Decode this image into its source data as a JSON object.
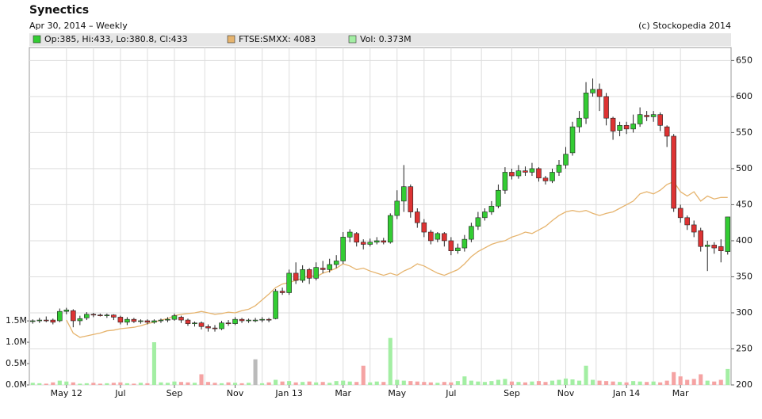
{
  "chart_data": {
    "type": "candlestick",
    "title": "Synectics",
    "subtitle": "Apr 30, 2014 – Weekly",
    "source": "(c) Stockopedia 2014",
    "categories": [
      null,
      null,
      null,
      null,
      null,
      "May 12",
      null,
      null,
      null,
      null,
      null,
      null,
      null,
      "Jul",
      null,
      null,
      null,
      null,
      null,
      null,
      null,
      "Sep",
      null,
      null,
      null,
      null,
      null,
      null,
      null,
      null,
      "Nov",
      null,
      null,
      null,
      null,
      null,
      null,
      null,
      "Jan 13",
      null,
      null,
      null,
      null,
      null,
      null,
      null,
      "Mar",
      null,
      null,
      null,
      null,
      null,
      null,
      null,
      "May",
      null,
      null,
      null,
      null,
      null,
      null,
      null,
      "Jul",
      null,
      null,
      null,
      null,
      null,
      null,
      null,
      null,
      "Sep",
      null,
      null,
      null,
      null,
      null,
      null,
      null,
      "Nov",
      null,
      null,
      null,
      null,
      null,
      null,
      null,
      null,
      "Jan 14",
      null,
      null,
      null,
      null,
      null,
      null,
      null,
      "Mar",
      null,
      null,
      null,
      null,
      null,
      null,
      null
    ],
    "series": [
      {
        "name": "Op:385, Hi:433, Lo:380.8, Cl:433",
        "type": "candlestick",
        "color": "#33cc33",
        "down_color": "#dd3333",
        "open": [
          288,
          289,
          290,
          290,
          289,
          302,
          303,
          289,
          293,
          298,
          297,
          296,
          297,
          294,
          287,
          291,
          288,
          289,
          287,
          289,
          290,
          291,
          294,
          290,
          285,
          286,
          281,
          279,
          278,
          286,
          285,
          291,
          289,
          290,
          290,
          291,
          292,
          330,
          328,
          355,
          345,
          360,
          348,
          362,
          360,
          367,
          372,
          405,
          410,
          398,
          395,
          398,
          400,
          398,
          435,
          455,
          475,
          440,
          425,
          412,
          402,
          410,
          400,
          386,
          390,
          402,
          420,
          432,
          440,
          448,
          470,
          495,
          490,
          497,
          495,
          500,
          487,
          483,
          495,
          505,
          522,
          558,
          570,
          605,
          610,
          600,
          570,
          553,
          560,
          555,
          562,
          574,
          572,
          575,
          558,
          545,
          445,
          432,
          422,
          414,
          392,
          394,
          392,
          385
        ],
        "high": [
          291,
          293,
          295,
          292,
          306,
          307,
          305,
          296,
          301,
          300,
          299,
          299,
          298,
          296,
          294,
          293,
          291,
          291,
          291,
          292,
          294,
          299,
          296,
          292,
          288,
          288,
          284,
          283,
          289,
          290,
          294,
          293,
          292,
          293,
          294,
          293,
          333,
          335,
          360,
          370,
          366,
          362,
          370,
          372,
          375,
          380,
          412,
          416,
          412,
          402,
          403,
          405,
          404,
          438,
          470,
          505,
          478,
          445,
          430,
          415,
          412,
          412,
          405,
          396,
          408,
          425,
          440,
          445,
          455,
          478,
          502,
          500,
          505,
          503,
          508,
          502,
          490,
          500,
          512,
          530,
          565,
          580,
          620,
          625,
          618,
          605,
          572,
          565,
          565,
          575,
          585,
          580,
          580,
          578,
          560,
          548,
          450,
          435,
          428,
          418,
          400,
          398,
          402,
          433
        ],
        "low": [
          285,
          286,
          287,
          284,
          287,
          298,
          280,
          283,
          290,
          294,
          295,
          293,
          290,
          284,
          283,
          286,
          285,
          284,
          285,
          286,
          287,
          289,
          286,
          282,
          281,
          277,
          274,
          274,
          276,
          282,
          283,
          286,
          286,
          287,
          287,
          287,
          291,
          325,
          325,
          340,
          342,
          340,
          345,
          355,
          356,
          362,
          368,
          398,
          392,
          388,
          392,
          395,
          395,
          396,
          430,
          440,
          432,
          418,
          405,
          395,
          398,
          392,
          380,
          382,
          385,
          398,
          415,
          428,
          436,
          445,
          465,
          485,
          486,
          490,
          490,
          482,
          478,
          480,
          490,
          500,
          518,
          550,
          562,
          600,
          580,
          560,
          540,
          545,
          548,
          550,
          558,
          566,
          565,
          552,
          530,
          440,
          425,
          415,
          405,
          385,
          358,
          382,
          370,
          380.8
        ],
        "close": [
          289,
          290,
          289,
          287,
          302,
          304,
          289,
          292,
          298,
          297,
          296,
          297,
          294,
          287,
          291,
          288,
          289,
          287,
          289,
          290,
          291,
          296,
          290,
          285,
          286,
          281,
          279,
          278,
          286,
          285,
          291,
          289,
          290,
          290,
          291,
          290,
          330,
          328,
          355,
          345,
          360,
          348,
          363,
          360,
          367,
          372,
          405,
          412,
          398,
          395,
          398,
          400,
          398,
          435,
          455,
          475,
          440,
          425,
          412,
          400,
          410,
          400,
          386,
          390,
          402,
          420,
          432,
          440,
          448,
          470,
          495,
          490,
          497,
          495,
          500,
          487,
          483,
          495,
          505,
          520,
          558,
          570,
          605,
          610,
          600,
          570,
          552,
          560,
          555,
          562,
          575,
          572,
          575,
          560,
          545,
          445,
          432,
          422,
          412,
          392,
          394,
          390,
          386,
          433
        ]
      },
      {
        "name": "FTSE:SMXX: 4083",
        "type": "line",
        "color": "#e6b46e",
        "values": [
          null,
          null,
          null,
          null,
          null,
          290,
          272,
          266,
          268,
          270,
          272,
          275,
          276,
          278,
          279,
          280,
          282,
          285,
          287,
          290,
          292,
          296,
          298,
          299,
          300,
          302,
          300,
          298,
          299,
          301,
          300,
          303,
          305,
          310,
          318,
          326,
          335,
          340,
          342,
          345,
          348,
          352,
          350,
          355,
          358,
          362,
          368,
          365,
          360,
          362,
          358,
          355,
          352,
          355,
          352,
          358,
          362,
          368,
          365,
          360,
          355,
          352,
          356,
          360,
          368,
          378,
          385,
          390,
          395,
          398,
          400,
          405,
          408,
          412,
          410,
          415,
          420,
          428,
          435,
          440,
          442,
          440,
          442,
          438,
          435,
          438,
          440,
          445,
          450,
          455,
          465,
          468,
          465,
          470,
          478,
          482,
          468,
          462,
          468,
          455,
          462,
          458,
          460,
          460
        ]
      },
      {
        "name": "Vol: 0.373M",
        "type": "bar",
        "axis": "y2",
        "color": "#a3eea3",
        "down_color": "#f5a3a3",
        "flat_color": "#bbbbbb",
        "values": [
          0.05,
          0.04,
          0.03,
          0.06,
          0.1,
          0.08,
          0.06,
          0.03,
          0.04,
          0.05,
          0.03,
          0.04,
          0.05,
          0.06,
          0.04,
          0.03,
          0.05,
          0.04,
          1.0,
          0.06,
          0.05,
          0.08,
          0.07,
          0.06,
          0.05,
          0.25,
          0.07,
          0.05,
          0.04,
          0.06,
          0.05,
          0.04,
          0.05,
          0.6,
          0.04,
          0.06,
          0.12,
          0.08,
          0.09,
          0.06,
          0.07,
          0.08,
          0.06,
          0.07,
          0.05,
          0.09,
          0.1,
          0.08,
          0.07,
          0.45,
          0.06,
          0.08,
          0.07,
          1.1,
          0.12,
          0.1,
          0.09,
          0.08,
          0.07,
          0.06,
          0.05,
          0.07,
          0.06,
          0.09,
          0.2,
          0.1,
          0.08,
          0.07,
          0.09,
          0.12,
          0.14,
          0.08,
          0.07,
          0.06,
          0.08,
          0.09,
          0.07,
          0.1,
          0.12,
          0.15,
          0.13,
          0.1,
          0.45,
          0.12,
          0.1,
          0.09,
          0.08,
          0.07,
          0.06,
          0.09,
          0.08,
          0.07,
          0.08,
          0.06,
          0.1,
          0.3,
          0.2,
          0.12,
          0.14,
          0.25,
          0.1,
          0.08,
          0.12,
          0.373
        ]
      }
    ],
    "ylim": [
      200,
      668
    ],
    "yticks": [
      200,
      250,
      300,
      350,
      400,
      450,
      500,
      550,
      600,
      650
    ],
    "y2lim": [
      0,
      7.9
    ],
    "y2ticks": [
      {
        "value": 0,
        "label": "0.0M"
      },
      {
        "value": 0.5,
        "label": "0.5M"
      },
      {
        "value": 1,
        "label": "1.0M"
      },
      {
        "value": 1.5,
        "label": "1.5M"
      }
    ],
    "grid": true
  }
}
